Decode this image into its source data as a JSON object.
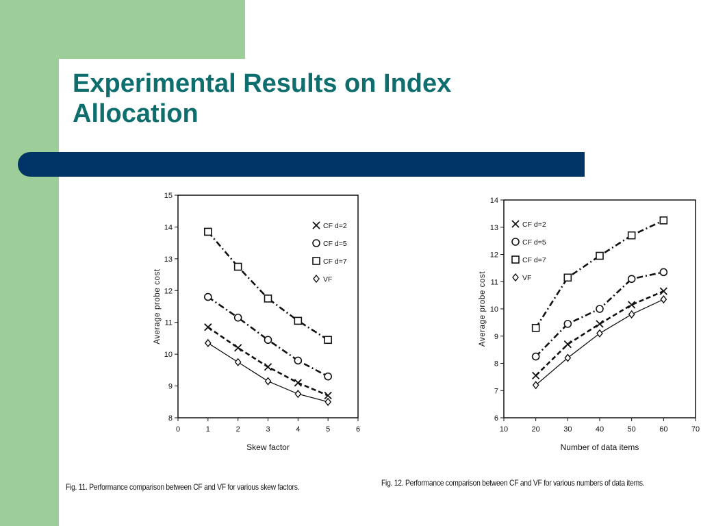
{
  "slide": {
    "title": "Experimental Results on Index\nAllocation",
    "colors": {
      "sidebar": "#9dce99",
      "title": "#0e6e6e",
      "bar": "#003466"
    }
  },
  "captions": {
    "fig11": "Fig. 11. Performance comparison between CF and VF for various skew factors.",
    "fig12": "Fig. 12. Performance comparison between CF and VF for various numbers of data items."
  },
  "chart_data": [
    {
      "type": "line",
      "title": "",
      "xlabel": "Skew factor",
      "ylabel": "Average probe cost",
      "xlim": [
        0,
        6
      ],
      "ylim": [
        8,
        15
      ],
      "x_ticks": [
        0,
        1,
        2,
        3,
        4,
        5,
        6
      ],
      "y_ticks": [
        8,
        9,
        10,
        11,
        12,
        13,
        14,
        15
      ],
      "legend_position": "top-right",
      "grid": false,
      "x": [
        1,
        2,
        3,
        4,
        5
      ],
      "series": [
        {
          "name": "CF d=2",
          "marker": "x",
          "dash": "dash",
          "values": [
            10.85,
            10.2,
            9.6,
            9.1,
            8.7
          ]
        },
        {
          "name": "CF d=5",
          "marker": "circle",
          "dash": "dashdot",
          "values": [
            11.8,
            11.15,
            10.45,
            9.8,
            9.3
          ]
        },
        {
          "name": "CF d=7",
          "marker": "square",
          "dash": "dashdot",
          "values": [
            13.85,
            12.75,
            11.75,
            11.05,
            10.45
          ]
        },
        {
          "name": "VF",
          "marker": "diamond",
          "dash": "solid",
          "values": [
            10.35,
            9.75,
            9.15,
            8.75,
            8.5
          ]
        }
      ]
    },
    {
      "type": "line",
      "title": "",
      "xlabel": "Number of data items",
      "ylabel": "Average probe cost",
      "xlim": [
        10,
        70
      ],
      "ylim": [
        6,
        14
      ],
      "x_ticks": [
        10,
        20,
        30,
        40,
        50,
        60,
        70
      ],
      "y_ticks": [
        6,
        7,
        8,
        9,
        10,
        11,
        12,
        13,
        14
      ],
      "legend_position": "top-left",
      "grid": false,
      "x": [
        20,
        30,
        40,
        50,
        60
      ],
      "series": [
        {
          "name": "CF d=2",
          "marker": "x",
          "dash": "dash",
          "values": [
            7.55,
            8.7,
            9.45,
            10.15,
            10.65
          ]
        },
        {
          "name": "CF d=5",
          "marker": "circle",
          "dash": "dashdot",
          "values": [
            8.25,
            9.45,
            10.0,
            11.1,
            11.35
          ]
        },
        {
          "name": "CF d=7",
          "marker": "square",
          "dash": "dashdot",
          "values": [
            9.3,
            11.15,
            11.95,
            12.7,
            13.25
          ]
        },
        {
          "name": "VF",
          "marker": "diamond",
          "dash": "solid",
          "values": [
            7.2,
            8.2,
            9.1,
            9.8,
            10.35
          ]
        }
      ]
    }
  ]
}
